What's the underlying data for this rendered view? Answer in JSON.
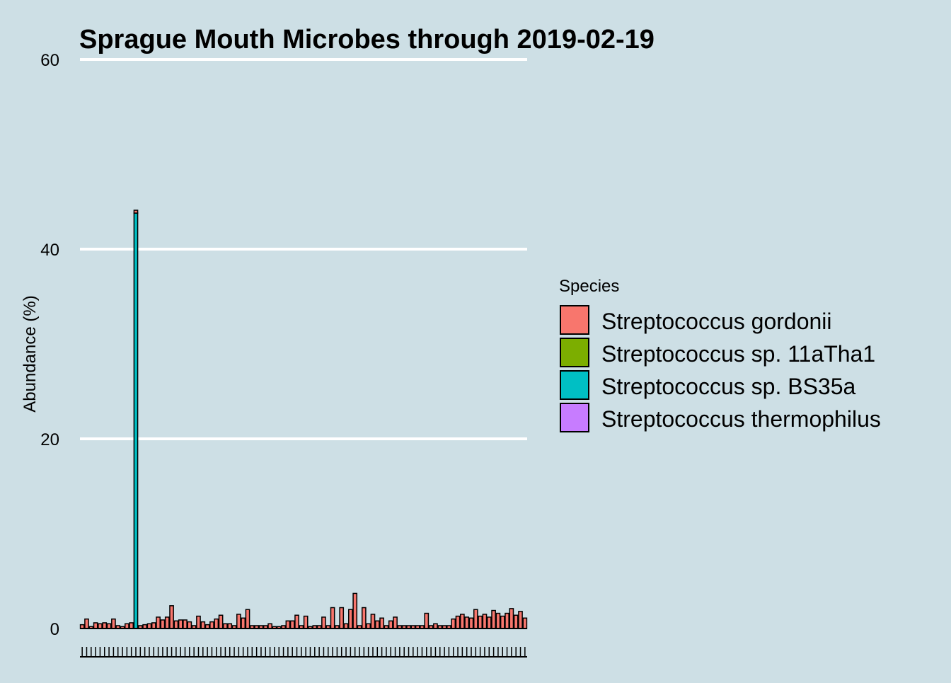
{
  "chart_data": {
    "type": "bar",
    "stacked": true,
    "title": "Sprague Mouth Microbes through 2019-02-19",
    "xlabel": "",
    "ylabel": "Abundance (%)",
    "ylim": [
      0,
      60
    ],
    "yticks": [
      0,
      20,
      40,
      60
    ],
    "grid": "horizontal",
    "legend": {
      "title": "Species",
      "placement": "right"
    },
    "series": [
      {
        "name": "Streptococcus gordonii",
        "color": "#F8766D",
        "values": [
          0.4,
          1.0,
          0.2,
          0.6,
          0.5,
          0.6,
          0.5,
          1.0,
          0.3,
          0.2,
          0.5,
          0.6,
          0.3,
          0.3,
          0.4,
          0.5,
          0.6,
          1.2,
          0.9,
          1.2,
          2.4,
          0.8,
          0.9,
          0.9,
          0.7,
          0.3,
          1.3,
          0.7,
          0.4,
          0.7,
          1.0,
          1.4,
          0.5,
          0.5,
          0.3,
          1.5,
          1.1,
          2.0,
          0.3,
          0.3,
          0.3,
          0.3,
          0.5,
          0.2,
          0.2,
          0.3,
          0.8,
          0.8,
          1.4,
          0.3,
          1.3,
          0.2,
          0.3,
          0.3,
          1.2,
          0.3,
          2.2,
          0.3,
          2.2,
          0.5,
          2.0,
          3.7,
          0.3,
          2.2,
          0.5,
          1.5,
          0.8,
          1.1,
          0.3,
          0.8,
          1.2,
          0.3,
          0.3,
          0.3,
          0.3,
          0.3,
          0.3,
          1.6,
          0.3,
          0.5,
          0.3,
          0.3,
          0.3,
          1.0,
          1.3,
          1.5,
          1.2,
          1.1,
          2.0,
          1.3,
          1.5,
          1.2,
          1.9,
          1.6,
          1.3,
          1.6,
          2.1,
          1.4,
          1.8,
          1.1
        ]
      },
      {
        "name": "Streptococcus sp. 11aTha1",
        "color": "#7CAE00",
        "values": [
          0,
          0,
          0,
          0,
          0,
          0,
          0,
          0,
          0,
          0,
          0,
          0,
          0,
          0,
          0,
          0,
          0,
          0,
          0,
          0,
          0,
          0,
          0,
          0,
          0,
          0,
          0,
          0,
          0,
          0,
          0,
          0,
          0,
          0,
          0,
          0,
          0,
          0,
          0,
          0,
          0,
          0,
          0,
          0,
          0,
          0,
          0,
          0,
          0,
          0,
          0,
          0,
          0,
          0,
          0,
          0,
          0,
          0,
          0,
          0,
          0,
          0,
          0,
          0,
          0,
          0,
          0,
          0,
          0,
          0,
          0,
          0,
          0,
          0,
          0,
          0,
          0,
          0,
          0,
          0,
          0,
          0,
          0,
          0,
          0,
          0,
          0,
          0,
          0,
          0,
          0,
          0,
          0,
          0,
          0,
          0,
          0,
          0,
          0,
          0,
          0,
          0,
          0,
          0
        ]
      },
      {
        "name": "Streptococcus sp. BS35a",
        "color": "#00BFC4",
        "values": [
          0,
          0,
          0,
          0,
          0,
          0,
          0,
          0,
          0,
          0,
          0,
          0,
          43.8,
          0,
          0,
          0,
          0,
          0,
          0,
          0,
          0,
          0,
          0,
          0,
          0,
          0,
          0,
          0,
          0,
          0,
          0,
          0,
          0,
          0,
          0,
          0,
          0,
          0,
          0,
          0,
          0,
          0,
          0,
          0,
          0,
          0,
          0,
          0,
          0,
          0,
          0,
          0,
          0,
          0,
          0,
          0,
          0,
          0,
          0,
          0,
          0,
          0,
          0,
          0,
          0,
          0,
          0,
          0,
          0,
          0,
          0,
          0,
          0,
          0,
          0,
          0,
          0,
          0,
          0,
          0,
          0,
          0,
          0,
          0,
          0,
          0,
          0,
          0,
          0,
          0,
          0,
          0,
          0,
          0,
          0,
          0,
          0,
          0,
          0,
          0
        ]
      },
      {
        "name": "Streptococcus thermophilus",
        "color": "#C77CFF",
        "values": [
          0,
          0,
          0,
          0,
          0,
          0,
          0,
          0,
          0,
          0,
          0,
          0,
          0,
          0,
          0,
          0,
          0,
          0,
          0,
          0,
          0,
          0,
          0,
          0,
          0,
          0,
          0,
          0,
          0,
          0,
          0,
          0,
          0,
          0,
          0,
          0,
          0,
          0,
          0,
          0,
          0,
          0,
          0,
          0,
          0,
          0,
          0,
          0,
          0,
          0,
          0,
          0,
          0,
          0,
          0,
          0,
          0,
          0,
          0,
          0,
          0,
          0,
          0,
          0,
          0,
          0,
          0,
          0,
          0,
          0,
          0,
          0,
          0,
          0,
          0,
          0,
          0,
          0,
          0,
          0,
          0,
          0,
          0,
          0,
          0,
          0,
          0,
          0,
          0,
          0,
          0,
          0,
          0,
          0,
          0,
          0,
          0,
          0,
          0,
          0,
          0,
          0,
          0,
          0
        ]
      }
    ]
  }
}
